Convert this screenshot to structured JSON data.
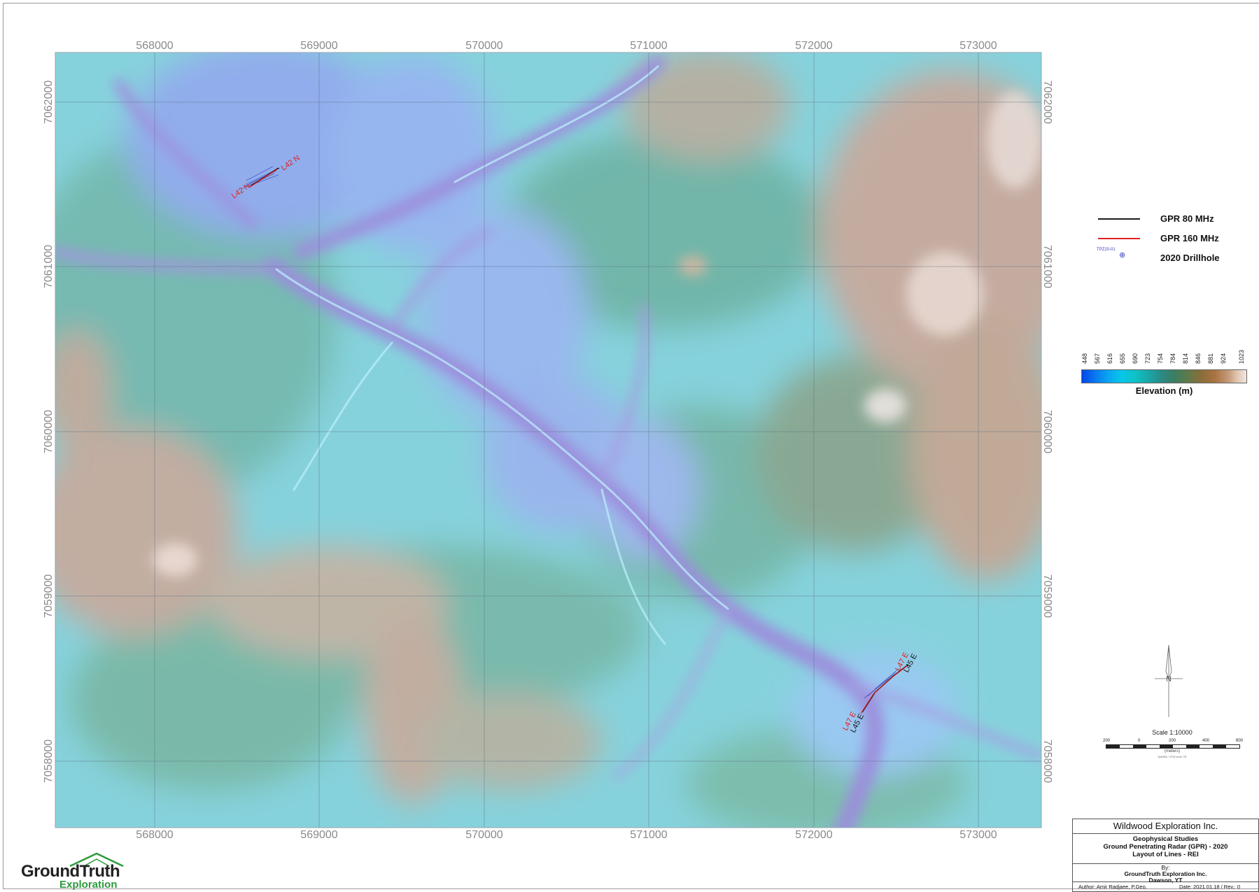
{
  "map": {
    "x_ticks": [
      "568000",
      "569000",
      "570000",
      "571000",
      "572000",
      "573000"
    ],
    "y_ticks": [
      "7062000",
      "7061000",
      "7060000",
      "7059000",
      "7058000"
    ],
    "line_labels_nw": {
      "start": "L42 N",
      "end": "L42 N"
    },
    "line_labels_se": {
      "start_red": "L47 E",
      "start_black": "L45 E",
      "end_red": "L47 E",
      "end_black": "L45 E"
    }
  },
  "legend": {
    "items": [
      {
        "label": "GPR 80 MHz",
        "color": "#1a1a1a",
        "icon": "black-line"
      },
      {
        "label": "GPR 160 MHz",
        "color": "#e02020",
        "icon": "red-line"
      },
      {
        "label": "2020 Drillhole",
        "sample_label": "TPZ20-01",
        "icon": "drillhole-symbol"
      }
    ]
  },
  "colorbar": {
    "title": "Elevation (m)",
    "values": [
      "448",
      "567",
      "616",
      "655",
      "690",
      "723",
      "754",
      "784",
      "814",
      "846",
      "881",
      "924",
      "1023"
    ],
    "colors": [
      "#0046e8",
      "#0a79f0",
      "#09a6f0",
      "#08c6ea",
      "#0ec2c6",
      "#19a8a8",
      "#2a8a86",
      "#3d7d60",
      "#5f7a4a",
      "#8b6d3b",
      "#a9733f",
      "#c49878",
      "#e3c8b3",
      "#f4ecea"
    ]
  },
  "north_arrow": {
    "label": "N"
  },
  "scale": {
    "title": "Scale 1:10000",
    "marks": [
      "200",
      "0",
      "200",
      "400",
      "600"
    ],
    "units": "(meters)",
    "projection": "NAD83 / UTM zone 7N"
  },
  "title_block": {
    "company": "Wildwood Exploration Inc.",
    "line1": "Geophysical Studies",
    "line2": "Ground Penetrating Radar (GPR) - 2020",
    "line3": "Layout of Lines - REI",
    "by_label": "By:",
    "by_company": "GroundTruth Exploration Inc.",
    "by_location": "Dawson, YT",
    "author": "Author: Amir Radjaee, P.Geo.",
    "date": "Date: 2021.01.18  /  Rev.: 0"
  },
  "logo": {
    "word1": "GroundTruth",
    "word2": "Exploration"
  }
}
